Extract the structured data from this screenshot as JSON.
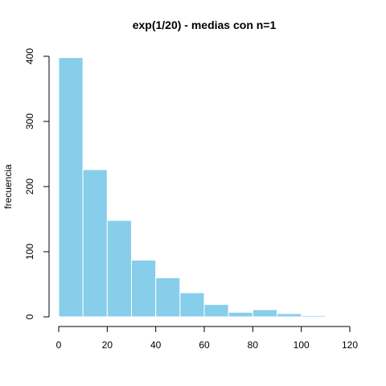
{
  "chart_data": {
    "type": "bar",
    "title": "exp(1/20) - medias con n=1",
    "xlabel": "",
    "ylabel": "frecuencia",
    "bin_edges": [
      0,
      10,
      20,
      30,
      40,
      50,
      60,
      70,
      80,
      90,
      100,
      110
    ],
    "values": [
      398,
      226,
      148,
      87,
      60,
      37,
      19,
      7,
      11,
      5,
      2
    ],
    "xlim": [
      0,
      120
    ],
    "ylim": [
      0,
      400
    ],
    "xticks": [
      0,
      20,
      40,
      60,
      80,
      100,
      120
    ],
    "yticks": [
      0,
      100,
      200,
      300,
      400
    ],
    "grid": false,
    "bar_color": "#87CEEB",
    "bar_border_color": "#ffffff"
  }
}
